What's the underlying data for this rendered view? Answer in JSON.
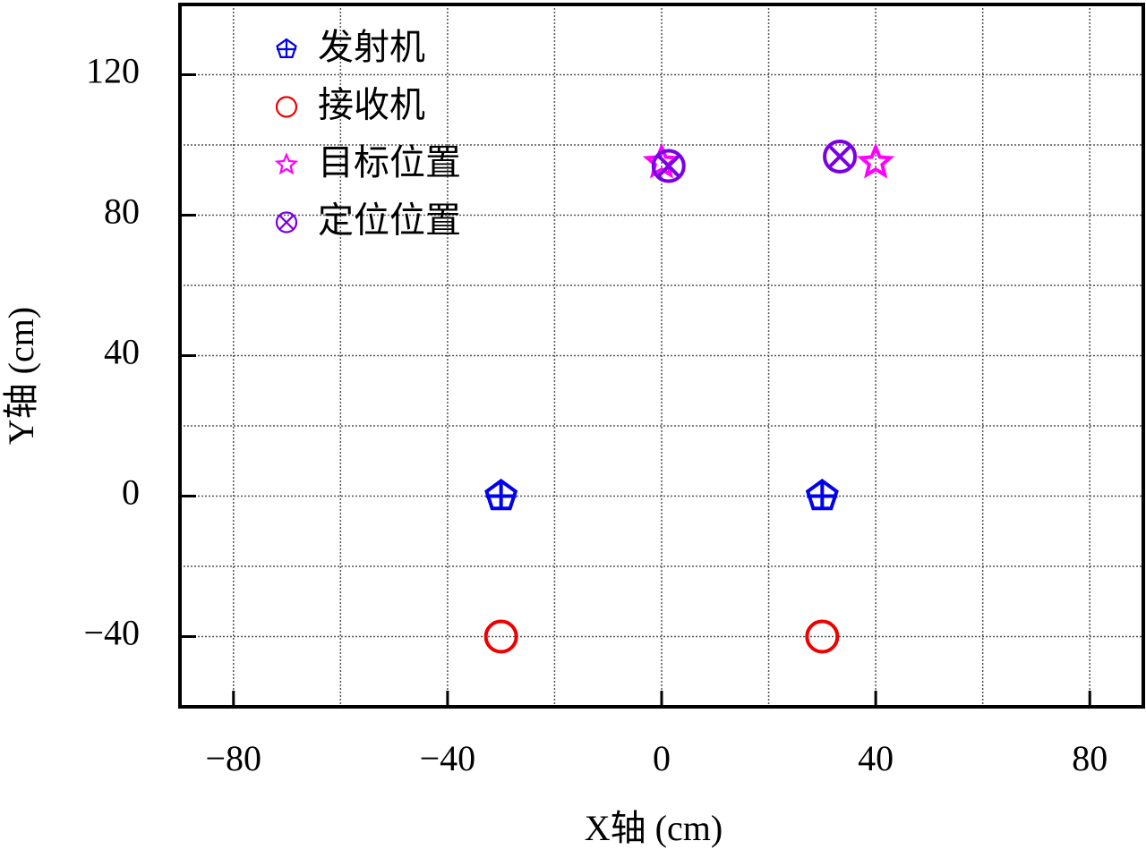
{
  "chart_data": {
    "type": "scatter",
    "xlabel": "X轴 (cm)",
    "ylabel": "Y轴 (cm)",
    "xlim": [
      -90,
      90
    ],
    "ylim": [
      -60,
      140
    ],
    "xticks": [
      {
        "value": -80,
        "label": "−80"
      },
      {
        "value": -40,
        "label": "−40"
      },
      0,
      40,
      80
    ],
    "yticks": [
      {
        "value": -40,
        "label": "−40"
      },
      0,
      40,
      80,
      120
    ],
    "xgrid": [
      -80,
      -60,
      -40,
      -20,
      0,
      20,
      40,
      60,
      80
    ],
    "ygrid": [
      -40,
      -20,
      0,
      20,
      40,
      60,
      80,
      100,
      120
    ],
    "grid": true,
    "legend_position": "upper left",
    "series": [
      {
        "name": "发射机",
        "color": "#0000ee",
        "marker": "pentagon-plus",
        "x": [
          -30,
          30
        ],
        "y": [
          0,
          0
        ]
      },
      {
        "name": "接收机",
        "color": "#ee0000",
        "marker": "circle",
        "x": [
          -30,
          30
        ],
        "y": [
          -40,
          -40
        ]
      },
      {
        "name": "目标位置",
        "color": "#ff00ff",
        "marker": "star",
        "x": [
          0,
          40
        ],
        "y": [
          95,
          95
        ]
      },
      {
        "name": "定位位置",
        "color": "#7a00e6",
        "marker": "circle-x",
        "x": [
          1.3,
          33.3
        ],
        "y": [
          94,
          96.7
        ]
      }
    ]
  }
}
